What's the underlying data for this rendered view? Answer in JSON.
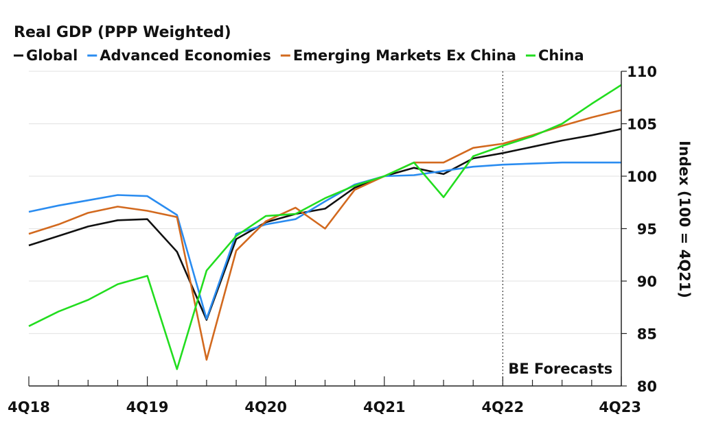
{
  "chart_data": {
    "type": "line",
    "title": "Real GDP (PPP Weighted)",
    "ylabel": "Index (100 = 4Q21)",
    "ylim": [
      80,
      110
    ],
    "yticks": [
      80,
      85,
      90,
      95,
      100,
      105,
      110
    ],
    "y_axis_side": "right",
    "grid": "horizontal",
    "legend_position": "top-left",
    "x": [
      "4Q18",
      "1Q19",
      "2Q19",
      "3Q19",
      "4Q19",
      "1Q20",
      "2Q20",
      "3Q20",
      "4Q20",
      "1Q21",
      "2Q21",
      "3Q21",
      "4Q21",
      "1Q22",
      "2Q22",
      "3Q22",
      "4Q22",
      "1Q23",
      "2Q23",
      "3Q23",
      "4Q23"
    ],
    "xtick_labels": [
      "4Q18",
      "4Q19",
      "4Q20",
      "4Q21",
      "4Q22",
      "4Q23"
    ],
    "series": [
      {
        "name": "Global",
        "color": "#111111",
        "values": [
          93.4,
          94.3,
          95.2,
          95.8,
          95.9,
          92.8,
          86.3,
          94.0,
          95.6,
          96.4,
          96.9,
          98.9,
          100.0,
          100.8,
          100.2,
          101.7,
          102.2,
          102.8,
          103.4,
          103.9,
          104.5
        ]
      },
      {
        "name": "Advanced Economies",
        "color": "#2a8cf0",
        "values": [
          96.6,
          97.2,
          97.7,
          98.2,
          98.1,
          96.3,
          86.4,
          94.5,
          95.4,
          95.9,
          97.6,
          99.2,
          100.0,
          100.1,
          100.5,
          100.9,
          101.1,
          101.2,
          101.3,
          101.3,
          101.3
        ]
      },
      {
        "name": "Emerging Markets Ex China",
        "color": "#d2691e",
        "values": [
          94.5,
          95.4,
          96.5,
          97.1,
          96.7,
          96.1,
          82.5,
          92.9,
          95.7,
          97.0,
          95.0,
          98.7,
          100.0,
          101.3,
          101.3,
          102.7,
          103.1,
          103.9,
          104.8,
          105.6,
          106.3
        ]
      },
      {
        "name": "China",
        "color": "#22dd1f",
        "values": [
          85.7,
          87.1,
          88.2,
          89.7,
          90.5,
          81.6,
          91.0,
          94.3,
          96.2,
          96.4,
          97.9,
          99.1,
          100.0,
          101.3,
          98.0,
          101.9,
          102.9,
          103.8,
          105.0,
          106.9,
          108.7
        ]
      }
    ],
    "annotation": {
      "label": "BE Forecasts",
      "at": "4Q22"
    }
  }
}
